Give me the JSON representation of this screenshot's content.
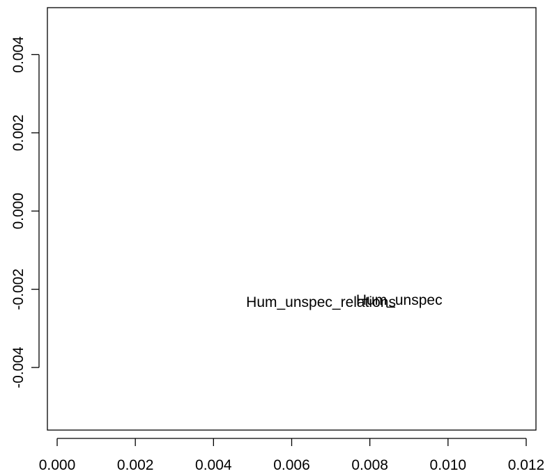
{
  "chart_data": {
    "type": "scatter",
    "title": "",
    "xlabel": "",
    "ylabel": "",
    "xlim": [
      -0.00025,
      0.01225
    ],
    "ylim": [
      -0.0056,
      0.0052
    ],
    "x_ticks": [
      0.0,
      0.002,
      0.004,
      0.006,
      0.008,
      0.01,
      0.012
    ],
    "x_tick_labels": [
      "0.000",
      "0.002",
      "0.004",
      "0.006",
      "0.008",
      "0.010",
      "0.012"
    ],
    "y_ticks": [
      -0.004,
      -0.002,
      0.0,
      0.002,
      0.004
    ],
    "y_tick_labels": [
      "-0.004",
      "-0.002",
      "0.000",
      "0.002",
      "0.004"
    ],
    "grid": false,
    "points": [
      {
        "label": "Hum_unspec_relations",
        "x": 0.00675,
        "y": -0.00235
      },
      {
        "label": "Hum_unspec",
        "x": 0.00875,
        "y": -0.0023
      }
    ]
  }
}
